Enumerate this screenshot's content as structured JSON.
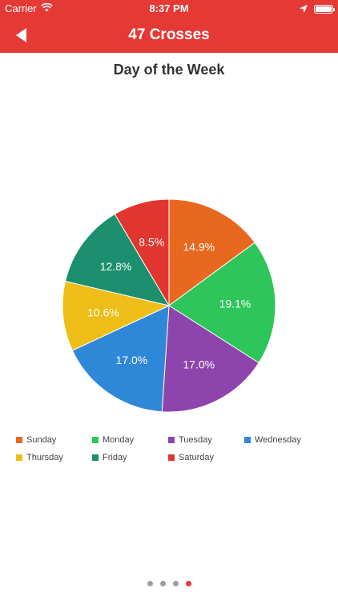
{
  "status_bar": {
    "carrier": "Carrier",
    "time": "8:37 PM"
  },
  "nav": {
    "title": "47 Crosses"
  },
  "page_dots": {
    "count": 4,
    "active_index": 3
  },
  "colors": {
    "header": "#e53935",
    "Sunday": "#e8681f",
    "Monday": "#2ec55b",
    "Tuesday": "#8e44ad",
    "Wednesday": "#2f87d8",
    "Thursday": "#eebd17",
    "Friday": "#1b8f6e",
    "Saturday": "#e0362f"
  },
  "chart_data": {
    "type": "pie",
    "title": "Day of the Week",
    "categories": [
      "Sunday",
      "Monday",
      "Tuesday",
      "Wednesday",
      "Thursday",
      "Friday",
      "Saturday"
    ],
    "values": [
      14.9,
      19.1,
      17.0,
      17.0,
      10.6,
      12.8,
      8.5
    ],
    "labels": [
      "14.9%",
      "19.1%",
      "17.0%",
      "17.0%",
      "10.6%",
      "12.8%",
      "8.5%"
    ],
    "legend_position": "bottom"
  }
}
